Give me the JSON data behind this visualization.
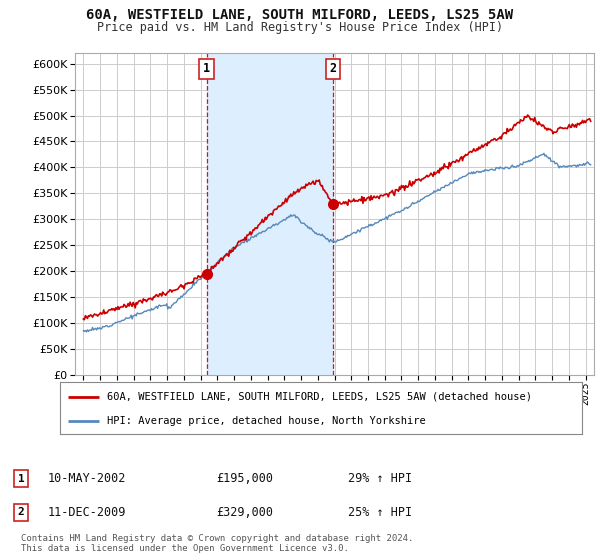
{
  "title": "60A, WESTFIELD LANE, SOUTH MILFORD, LEEDS, LS25 5AW",
  "subtitle": "Price paid vs. HM Land Registry's House Price Index (HPI)",
  "ylim": [
    0,
    620000
  ],
  "yticks": [
    0,
    50000,
    100000,
    150000,
    200000,
    250000,
    300000,
    350000,
    400000,
    450000,
    500000,
    550000,
    600000
  ],
  "xlim_start": 1994.5,
  "xlim_end": 2025.5,
  "sale1_x": 2002.36,
  "sale1_y": 195000,
  "sale2_x": 2009.92,
  "sale2_y": 329000,
  "vline1_x": 2002.36,
  "vline2_x": 2009.92,
  "legend1_label": "60A, WESTFIELD LANE, SOUTH MILFORD, LEEDS, LS25 5AW (detached house)",
  "legend2_label": "HPI: Average price, detached house, North Yorkshire",
  "ann1_date": "10-MAY-2002",
  "ann1_price": "£195,000",
  "ann1_hpi": "29% ↑ HPI",
  "ann2_date": "11-DEC-2009",
  "ann2_price": "£329,000",
  "ann2_hpi": "25% ↑ HPI",
  "footer": "Contains HM Land Registry data © Crown copyright and database right 2024.\nThis data is licensed under the Open Government Licence v3.0.",
  "red_color": "#cc0000",
  "blue_color": "#5588bb",
  "shade_color": "#ddeeff",
  "bg_color": "#f0f0f0",
  "plot_bg": "#ffffff",
  "grid_color": "#cccccc"
}
